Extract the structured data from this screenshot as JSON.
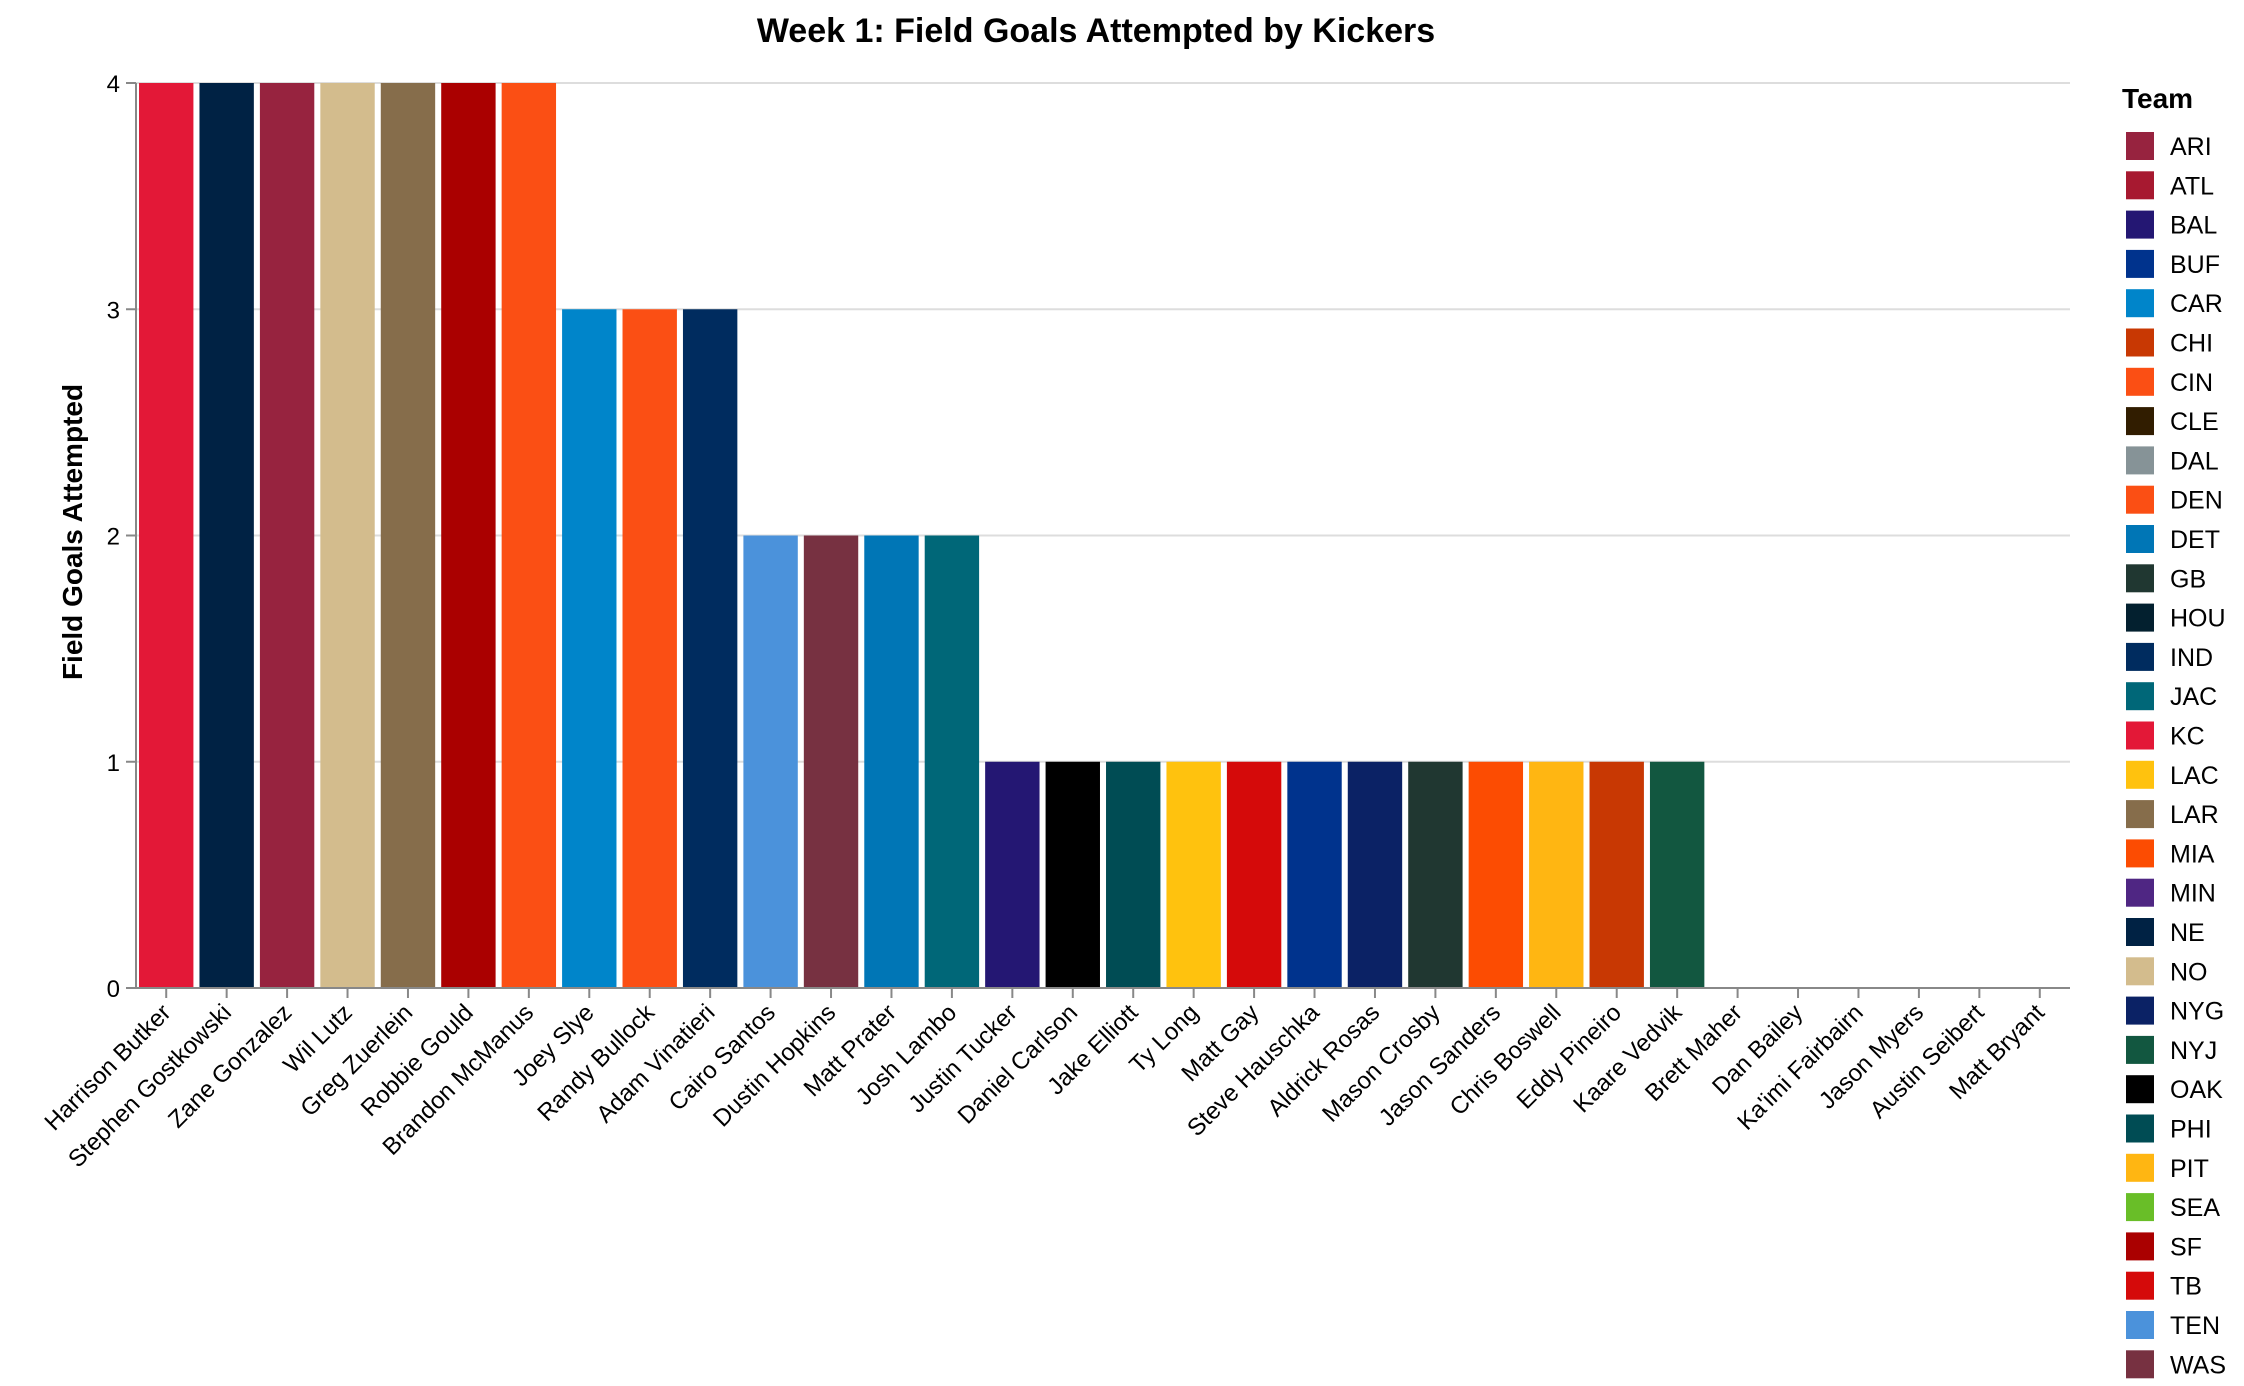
{
  "chart_data": {
    "type": "bar",
    "title": "Week 1: Field Goals Attempted by Kickers",
    "xlabel": "",
    "ylabel": "Field Goals Attempted",
    "ylim": [
      0,
      4
    ],
    "yticks": [
      "0",
      "1",
      "2",
      "3",
      "4"
    ],
    "grid": true,
    "legend_position": "right",
    "legend_title": "Team",
    "categories": [
      "Harrison Butker",
      "Stephen Gostkowski",
      "Zane Gonzalez",
      "Wil Lutz",
      "Greg Zuerlein",
      "Robbie Gould",
      "Brandon McManus",
      "Joey Slye",
      "Randy Bullock",
      "Adam Vinatieri",
      "Cairo Santos",
      "Dustin Hopkins",
      "Matt Prater",
      "Josh Lambo",
      "Justin Tucker",
      "Daniel Carlson",
      "Jake Elliott",
      "Ty Long",
      "Matt Gay",
      "Steve Hauschka",
      "Aldrick Rosas",
      "Mason Crosby",
      "Jason Sanders",
      "Chris Boswell",
      "Eddy Pineiro",
      "Kaare Vedvik",
      "Brett Maher",
      "Dan Bailey",
      "Ka'imi Fairbairn",
      "Jason Myers",
      "Austin Seibert",
      "Matt Bryant"
    ],
    "values": [
      4,
      4,
      4,
      4,
      4,
      4,
      4,
      3,
      3,
      3,
      2,
      2,
      2,
      2,
      1,
      1,
      1,
      1,
      1,
      1,
      1,
      1,
      1,
      1,
      1,
      1,
      0,
      0,
      0,
      0,
      0,
      0
    ],
    "teams": [
      "KC",
      "NE",
      "ARI",
      "NO",
      "LAR",
      "SF",
      "DEN",
      "CAR",
      "CIN",
      "IND",
      "TEN",
      "WAS",
      "DET",
      "JAC",
      "BAL",
      "OAK",
      "PHI",
      "LAC",
      "TB",
      "BUF",
      "NYG",
      "GB",
      "MIA",
      "PIT",
      "CHI",
      "NYJ",
      "DAL",
      "MIN",
      "HOU",
      "SEA",
      "CLE",
      "ATL"
    ],
    "legend": [
      {
        "team": "ARI",
        "color": "#97233F"
      },
      {
        "team": "ATL",
        "color": "#A71930"
      },
      {
        "team": "BAL",
        "color": "#241773"
      },
      {
        "team": "BUF",
        "color": "#00338D"
      },
      {
        "team": "CAR",
        "color": "#0085CA"
      },
      {
        "team": "CHI",
        "color": "#C83803"
      },
      {
        "team": "CIN",
        "color": "#FB4F14"
      },
      {
        "team": "CLE",
        "color": "#311D00"
      },
      {
        "team": "DAL",
        "color": "#869397"
      },
      {
        "team": "DEN",
        "color": "#FB4F14"
      },
      {
        "team": "DET",
        "color": "#0076B6"
      },
      {
        "team": "GB",
        "color": "#203731"
      },
      {
        "team": "HOU",
        "color": "#03202F"
      },
      {
        "team": "IND",
        "color": "#002C5F"
      },
      {
        "team": "JAC",
        "color": "#006778"
      },
      {
        "team": "KC",
        "color": "#E31837"
      },
      {
        "team": "LAC",
        "color": "#FFC20E"
      },
      {
        "team": "LAR",
        "color": "#866D4B"
      },
      {
        "team": "MIA",
        "color": "#FC4C02"
      },
      {
        "team": "MIN",
        "color": "#4F2683"
      },
      {
        "team": "NE",
        "color": "#002244"
      },
      {
        "team": "NO",
        "color": "#D3BC8D"
      },
      {
        "team": "NYG",
        "color": "#0B2265"
      },
      {
        "team": "NYJ",
        "color": "#125740"
      },
      {
        "team": "OAK",
        "color": "#000000"
      },
      {
        "team": "PHI",
        "color": "#004C54"
      },
      {
        "team": "PIT",
        "color": "#FFB612"
      },
      {
        "team": "SEA",
        "color": "#69BE28"
      },
      {
        "team": "SF",
        "color": "#AA0000"
      },
      {
        "team": "TB",
        "color": "#D50A0A"
      },
      {
        "team": "TEN",
        "color": "#4B92DB"
      },
      {
        "team": "WAS",
        "color": "#773141"
      }
    ]
  }
}
